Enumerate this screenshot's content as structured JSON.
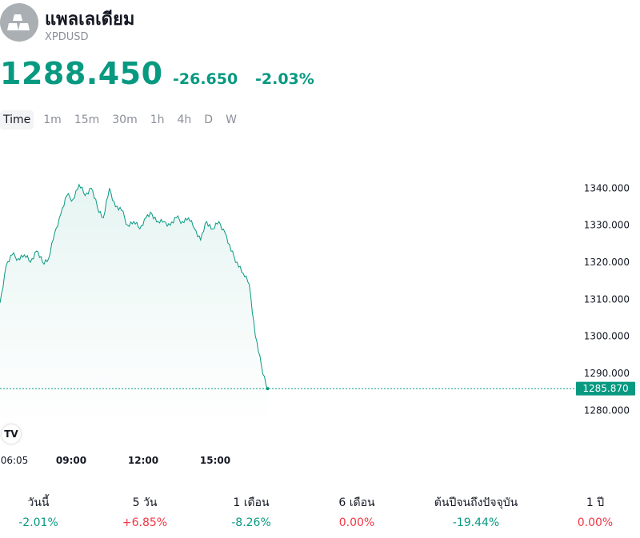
{
  "header": {
    "title": "แพลเลเดียม",
    "ticker": "XPDUSD",
    "icon": "metal-bars-icon"
  },
  "quote": {
    "price": "1288.450",
    "change": "-26.650",
    "change_pct": "-2.03%",
    "color": "#089981"
  },
  "tabs": [
    {
      "label": "Time",
      "active": true
    },
    {
      "label": "1m"
    },
    {
      "label": "15m"
    },
    {
      "label": "30m"
    },
    {
      "label": "1h"
    },
    {
      "label": "4h"
    },
    {
      "label": "D"
    },
    {
      "label": "W"
    }
  ],
  "chart_data": {
    "type": "area",
    "x_ticks": [
      "06:05",
      "09:00",
      "12:00",
      "15:00"
    ],
    "y_ticks": [
      "1340.000",
      "1330.000",
      "1320.000",
      "1310.000",
      "1300.000",
      "1290.000",
      "1280.000"
    ],
    "ylim": [
      1276.4,
      1349.8
    ],
    "last_value": "1285.870",
    "line_color": "#089981",
    "x": [
      "06:05",
      "06:20",
      "06:35",
      "06:50",
      "07:05",
      "07:20",
      "07:35",
      "07:50",
      "08:05",
      "08:20",
      "08:35",
      "08:50",
      "09:05",
      "09:20",
      "09:35",
      "09:50",
      "10:05",
      "10:20",
      "10:35",
      "10:50",
      "11:05",
      "11:20",
      "11:35",
      "11:50",
      "12:05",
      "12:20",
      "12:35",
      "12:50",
      "13:05",
      "13:20",
      "13:35",
      "13:50",
      "14:05",
      "14:20",
      "14:35",
      "14:50",
      "15:05",
      "15:20",
      "15:35",
      "15:50",
      "16:05",
      "16:20",
      "16:35",
      "16:50",
      "17:05"
    ],
    "values": [
      1309,
      1319,
      1322,
      1321,
      1322,
      1320,
      1323,
      1320,
      1321,
      1328,
      1333,
      1338,
      1337,
      1341,
      1338,
      1340,
      1335,
      1332,
      1340,
      1335,
      1334,
      1330,
      1331,
      1329,
      1332,
      1333,
      1331,
      1331,
      1330,
      1332,
      1331,
      1332,
      1329,
      1326,
      1331,
      1329,
      1331,
      1328,
      1323,
      1320,
      1317,
      1314,
      1300,
      1292,
      1285.87
    ]
  },
  "performance": [
    {
      "label": "วันนี้",
      "value": "-2.01%",
      "tone": "pos"
    },
    {
      "label": "5 วัน",
      "value": "+6.85%",
      "tone": "neg"
    },
    {
      "label": "1 เดือน",
      "value": "-8.26%",
      "tone": "pos"
    },
    {
      "label": "6 เดือน",
      "value": "0.00%",
      "tone": "neg"
    },
    {
      "label": "ต้นปีจนถึงปัจจุบัน",
      "value": "-19.44%",
      "tone": "pos"
    },
    {
      "label": "1 ปี",
      "value": "0.00%",
      "tone": "neg"
    }
  ]
}
